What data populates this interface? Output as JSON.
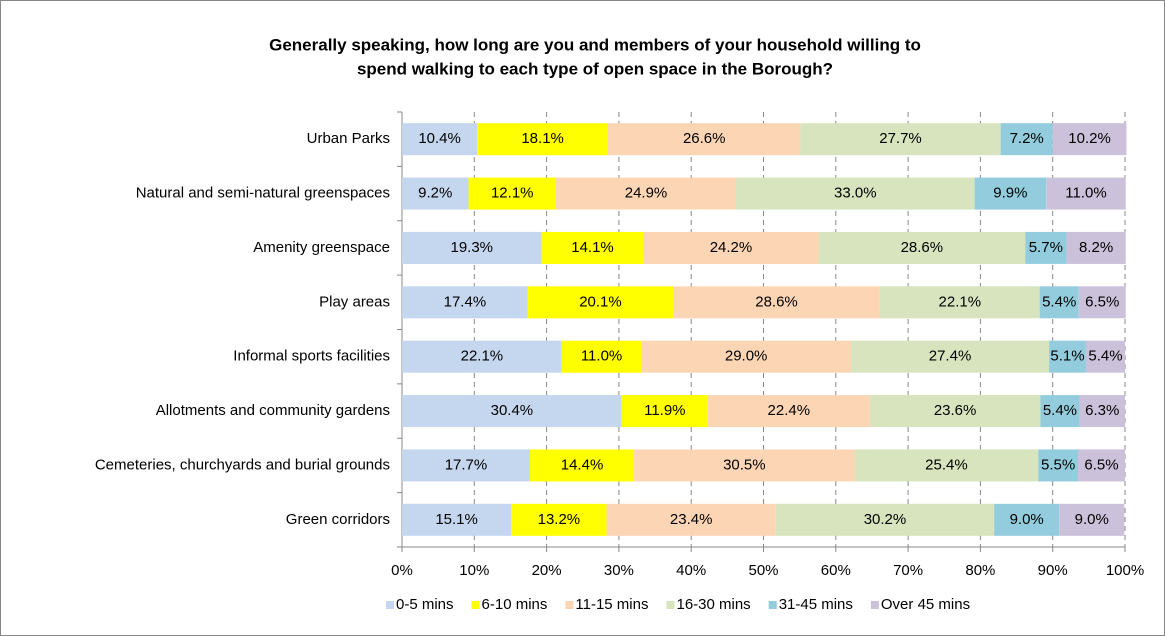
{
  "chart_data": {
    "type": "bar",
    "orientation": "horizontal",
    "stacked": true,
    "title": [
      "Generally speaking, how long are you and members of your household willing to",
      "spend walking to each type of open space in the Borough?"
    ],
    "categories": [
      "Urban Parks",
      "Natural and semi-natural greenspaces",
      "Amenity greenspace",
      "Play areas",
      "Informal sports facilities",
      "Allotments and community gardens",
      "Cemeteries, churchyards and burial grounds",
      "Green corridors"
    ],
    "series": [
      {
        "name": "0-5 mins",
        "color": "#c5d6ef",
        "values": [
          10.4,
          9.2,
          19.3,
          17.4,
          22.1,
          30.4,
          17.7,
          15.1
        ],
        "value_labels": [
          "10.4%",
          "9.2%",
          "19.3%",
          "17.4%",
          "22.1%",
          "30.4%",
          "17.7%",
          "15.1%"
        ]
      },
      {
        "name": "6-10 mins",
        "color": "#ffff00",
        "values": [
          18.1,
          12.1,
          14.1,
          20.1,
          11.0,
          11.9,
          14.4,
          13.2
        ],
        "value_labels": [
          "18.1%",
          "12.1%",
          "14.1%",
          "20.1%",
          "11.0%",
          "11.9%",
          "14.4%",
          "13.2%"
        ]
      },
      {
        "name": "11-15 mins",
        "color": "#fcd5b5",
        "values": [
          26.6,
          24.9,
          24.2,
          28.6,
          29.0,
          22.4,
          30.5,
          23.4
        ],
        "value_labels": [
          "26.6%",
          "24.9%",
          "24.2%",
          "28.6%",
          "29.0%",
          "22.4%",
          "30.5%",
          "23.4%"
        ]
      },
      {
        "name": "16-30 mins",
        "color": "#d7e4bd",
        "values": [
          27.7,
          33.0,
          28.6,
          22.1,
          27.4,
          23.6,
          25.4,
          30.2
        ],
        "value_labels": [
          "27.7%",
          "33.0%",
          "28.6%",
          "22.1%",
          "27.4%",
          "23.6%",
          "25.4%",
          "30.2%"
        ]
      },
      {
        "name": "31-45 mins",
        "color": "#93cddd",
        "values": [
          7.2,
          9.9,
          5.7,
          5.4,
          5.1,
          5.4,
          5.5,
          9.0
        ],
        "value_labels": [
          "7.2%",
          "9.9%",
          "5.7%",
          "5.4%",
          "5.1%",
          "5.4%",
          "5.5%",
          "9.0%"
        ]
      },
      {
        "name": "Over 45 mins",
        "color": "#ccc1da",
        "values": [
          10.2,
          11.0,
          8.2,
          6.5,
          5.4,
          6.3,
          6.5,
          9.0
        ],
        "value_labels": [
          "10.2%",
          "11.0%",
          "8.2%",
          "6.5%",
          "5.4%",
          "6.3%",
          "6.5%",
          "9.0%"
        ]
      }
    ],
    "xlim": [
      0,
      100
    ],
    "xticks": [
      {
        "value": 0,
        "label": "0%"
      },
      {
        "value": 10,
        "label": "10%"
      },
      {
        "value": 20,
        "label": "20%"
      },
      {
        "value": 30,
        "label": "30%"
      },
      {
        "value": 40,
        "label": "40%"
      },
      {
        "value": 50,
        "label": "50%"
      },
      {
        "value": 60,
        "label": "60%"
      },
      {
        "value": 70,
        "label": "70%"
      },
      {
        "value": 80,
        "label": "80%"
      },
      {
        "value": 90,
        "label": "90%"
      },
      {
        "value": 100,
        "label": "100%"
      }
    ],
    "grid": true,
    "legend": "bottom"
  }
}
